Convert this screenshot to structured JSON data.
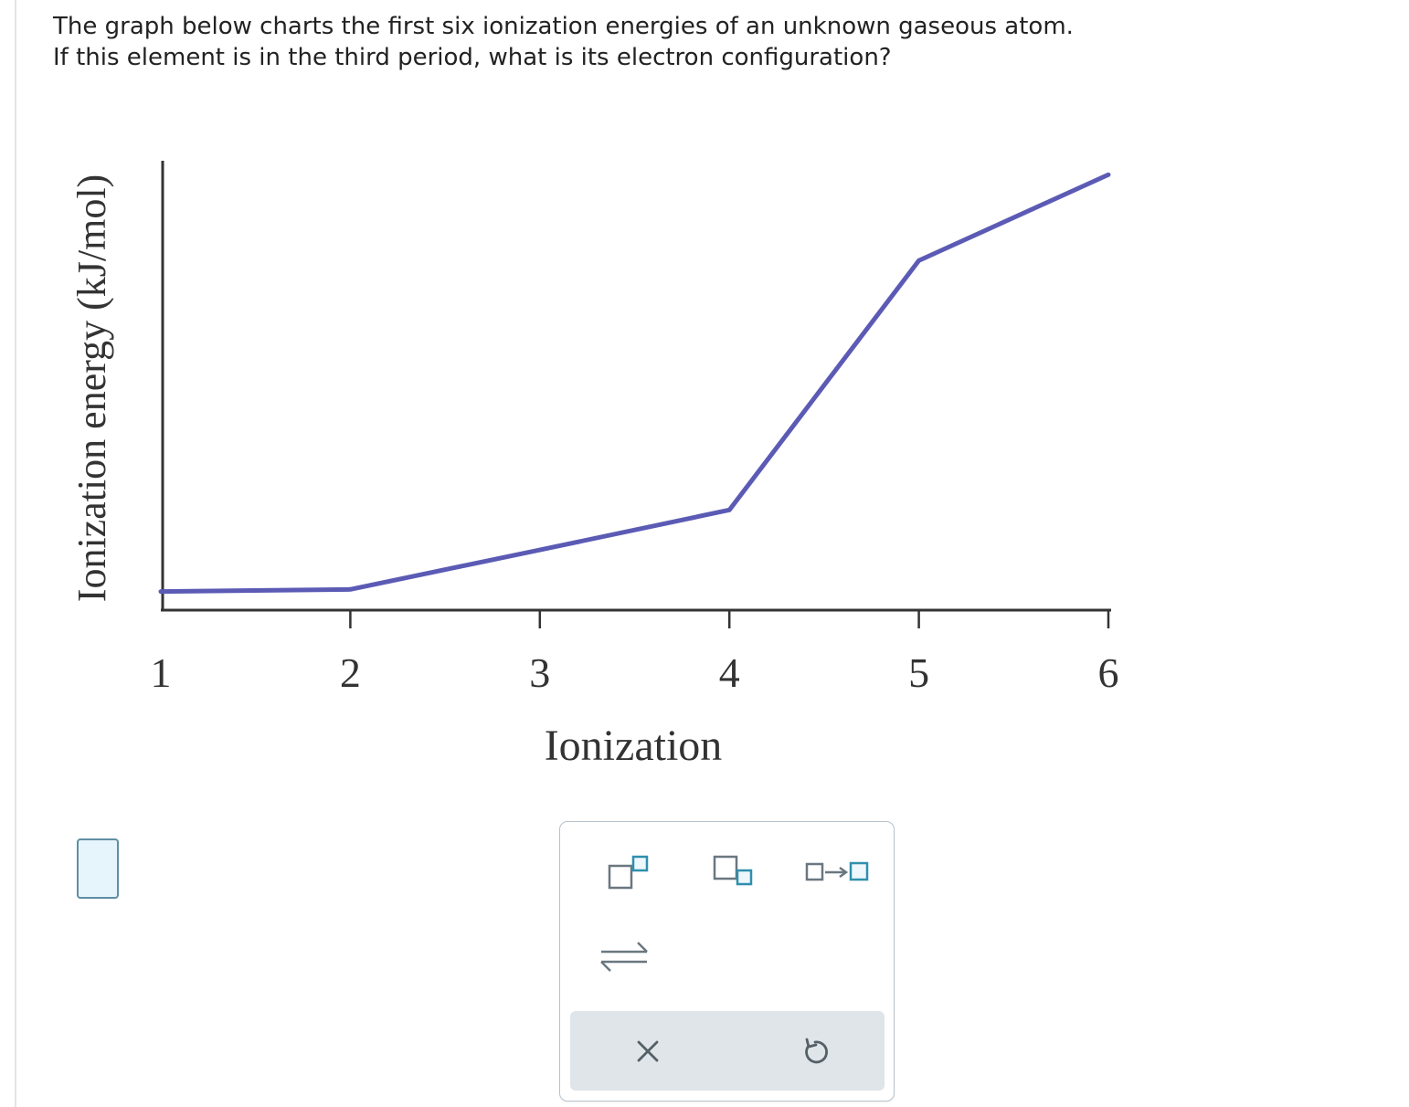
{
  "question": {
    "line1": "The graph below charts the first six ionization energies of an unknown gaseous atom.",
    "line2": "If this element is in the third period, what is its electron configuration?"
  },
  "chart_data": {
    "type": "line",
    "xlabel": "Ionization",
    "ylabel": "Ionization energy (kJ/mol)",
    "x": [
      1,
      2,
      3,
      4,
      5,
      6
    ],
    "series": [
      {
        "values": [
          0.5,
          1.0,
          10.2,
          19.5,
          77.6,
          97.6
        ]
      }
    ],
    "xlim": [
      1,
      6
    ],
    "ylim": [
      0,
      100
    ],
    "y_ticks_shown": false,
    "line_color": "#5b5bb5",
    "axis_color": "#333333",
    "grid": false
  },
  "toolbox": {
    "buttons": [
      {
        "icon": "superscript-icon"
      },
      {
        "icon": "subscript-icon"
      },
      {
        "icon": "reaction-arrow-icon"
      },
      {
        "icon": "equilibrium-arrow-icon"
      }
    ],
    "footer": [
      {
        "icon": "clear-icon",
        "symbol": "×"
      },
      {
        "icon": "undo-icon"
      }
    ],
    "colors": {
      "icon_dark": "#6a7780",
      "icon_accent": "#2f8fad",
      "footer_bg": "#dfe5e9"
    }
  }
}
